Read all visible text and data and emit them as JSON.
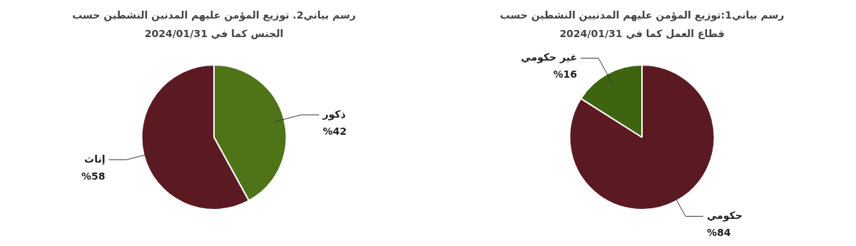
{
  "chart_data": [
    {
      "type": "pie",
      "title": "رسم بياني1:توزيع المؤمن عليهم  المدنيين النشطين حسب قطاع العمل كما في 2024/01/31",
      "categories": [
        "حكومي",
        "غير حكومي"
      ],
      "values": [
        84,
        16
      ],
      "value_labels": [
        "%84",
        "%16"
      ],
      "colors": [
        "#5b1a22",
        "#3f6410"
      ]
    },
    {
      "type": "pie",
      "title": "رسم بياني2. توزيع المؤمن عليهم المدنين النشطين حسب الجنس كما في 2024/01/31",
      "categories": [
        "ذكور",
        "إناث"
      ],
      "values": [
        42,
        58
      ],
      "value_labels": [
        "%42",
        "%58"
      ],
      "colors": [
        "#4f7418",
        "#5b1a22"
      ]
    }
  ]
}
